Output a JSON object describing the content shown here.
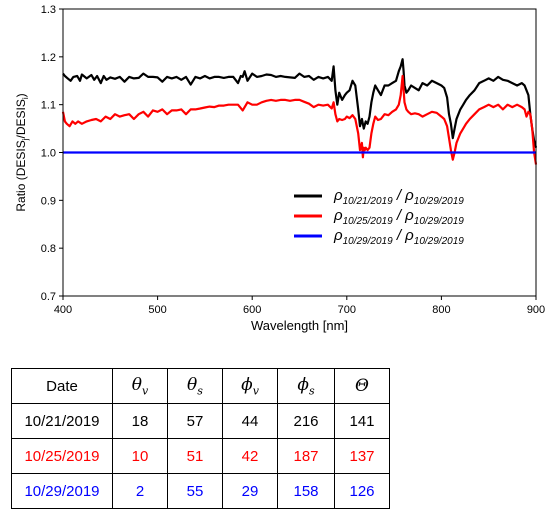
{
  "chart_data": {
    "type": "line",
    "title": "",
    "xlabel": "Wavelength [nm]",
    "ylabel_parts": [
      "Ratio (DESIS",
      "j",
      "/DESIS",
      "i",
      ")"
    ],
    "xlim": [
      400,
      900
    ],
    "ylim": [
      0.7,
      1.3
    ],
    "xticks": [
      400,
      500,
      600,
      700,
      800,
      900
    ],
    "yticks": [
      0.7,
      0.8,
      0.9,
      1.0,
      1.1,
      1.2,
      1.3
    ],
    "xtick_labels": [
      "400",
      "500",
      "600",
      "700",
      "800",
      "900"
    ],
    "ytick_labels": [
      "0.7",
      "0.8",
      "0.9",
      "1.0",
      "1.1",
      "1.2",
      "1.3"
    ],
    "grid": false,
    "legend_position": "right",
    "series": [
      {
        "name": "ρ10/21/2019 / ρ10/29/2019",
        "legend": {
          "rho_a": "ρ",
          "sub_a": "10/21/2019",
          "sep": " / ",
          "rho_b": "ρ",
          "sub_b": "10/29/2019"
        },
        "color": "#000000",
        "x": [
          400,
          402,
          405,
          408,
          411,
          415,
          418,
          420,
          425,
          430,
          433,
          436,
          440,
          443,
          446,
          450,
          455,
          460,
          465,
          470,
          475,
          480,
          485,
          490,
          495,
          500,
          505,
          510,
          515,
          520,
          525,
          530,
          535,
          540,
          545,
          550,
          555,
          560,
          565,
          570,
          575,
          580,
          585,
          588,
          590,
          592,
          595,
          600,
          605,
          610,
          615,
          620,
          625,
          630,
          635,
          640,
          645,
          650,
          655,
          660,
          665,
          670,
          675,
          680,
          684,
          686,
          688,
          690,
          692,
          695,
          698,
          700,
          703,
          706,
          709,
          712,
          714,
          716,
          718,
          720,
          722,
          724,
          726,
          728,
          730,
          733,
          736,
          740,
          744,
          748,
          752,
          755,
          757,
          759,
          760,
          761,
          763,
          765,
          768,
          772,
          776,
          780,
          785,
          790,
          795,
          800,
          803,
          806,
          808,
          810,
          812,
          814,
          816,
          818,
          820,
          823,
          826,
          830,
          835,
          840,
          845,
          850,
          855,
          860,
          865,
          870,
          875,
          880,
          885,
          888,
          890,
          892,
          894,
          896,
          898,
          900
        ],
        "y": [
          1.165,
          1.16,
          1.155,
          1.15,
          1.158,
          1.16,
          1.15,
          1.163,
          1.155,
          1.162,
          1.152,
          1.16,
          1.145,
          1.16,
          1.152,
          1.157,
          1.154,
          1.158,
          1.148,
          1.158,
          1.155,
          1.156,
          1.165,
          1.158,
          1.158,
          1.157,
          1.148,
          1.158,
          1.155,
          1.158,
          1.152,
          1.158,
          1.142,
          1.158,
          1.155,
          1.16,
          1.155,
          1.158,
          1.158,
          1.156,
          1.158,
          1.158,
          1.145,
          1.16,
          1.158,
          1.17,
          1.15,
          1.165,
          1.158,
          1.16,
          1.163,
          1.162,
          1.158,
          1.16,
          1.158,
          1.157,
          1.156,
          1.165,
          1.158,
          1.16,
          1.152,
          1.158,
          1.155,
          1.158,
          1.15,
          1.18,
          1.13,
          1.1,
          1.125,
          1.11,
          1.12,
          1.125,
          1.13,
          1.15,
          1.14,
          1.09,
          1.055,
          1.07,
          1.05,
          1.065,
          1.06,
          1.075,
          1.105,
          1.125,
          1.14,
          1.13,
          1.12,
          1.14,
          1.14,
          1.145,
          1.15,
          1.17,
          1.18,
          1.195,
          1.17,
          1.14,
          1.125,
          1.13,
          1.14,
          1.135,
          1.13,
          1.145,
          1.14,
          1.15,
          1.145,
          1.14,
          1.135,
          1.115,
          1.08,
          1.06,
          1.03,
          1.05,
          1.07,
          1.08,
          1.09,
          1.1,
          1.11,
          1.12,
          1.13,
          1.145,
          1.15,
          1.155,
          1.15,
          1.158,
          1.152,
          1.15,
          1.145,
          1.14,
          1.145,
          1.14,
          1.13,
          1.12,
          1.08,
          1.05,
          1.025,
          1.01
        ]
      },
      {
        "name": "ρ10/25/2019 / ρ10/29/2019",
        "legend": {
          "rho_a": "ρ",
          "sub_a": "10/25/2019",
          "sep": " / ",
          "rho_b": "ρ",
          "sub_b": "10/29/2019"
        },
        "color": "#ff0000",
        "x": [
          400,
          402,
          404,
          407,
          410,
          413,
          416,
          420,
          425,
          430,
          435,
          440,
          445,
          450,
          455,
          460,
          465,
          470,
          475,
          480,
          485,
          490,
          495,
          500,
          505,
          510,
          515,
          520,
          525,
          530,
          535,
          540,
          545,
          550,
          555,
          560,
          565,
          570,
          575,
          580,
          585,
          590,
          595,
          600,
          605,
          610,
          615,
          620,
          625,
          630,
          635,
          640,
          645,
          650,
          655,
          660,
          665,
          670,
          675,
          680,
          684,
          686,
          688,
          690,
          692,
          695,
          698,
          700,
          703,
          706,
          709,
          712,
          714,
          716,
          717,
          718,
          719,
          720,
          722,
          724,
          726,
          728,
          730,
          733,
          736,
          740,
          744,
          748,
          752,
          755,
          757,
          759,
          760,
          761,
          763,
          765,
          768,
          772,
          776,
          780,
          785,
          790,
          795,
          800,
          803,
          806,
          808,
          810,
          812,
          814,
          816,
          818,
          820,
          823,
          826,
          830,
          835,
          840,
          845,
          850,
          855,
          860,
          865,
          870,
          875,
          880,
          885,
          888,
          890,
          892,
          894,
          896,
          898,
          900
        ],
        "y": [
          1.085,
          1.065,
          1.06,
          1.055,
          1.065,
          1.06,
          1.065,
          1.06,
          1.065,
          1.068,
          1.07,
          1.065,
          1.075,
          1.07,
          1.08,
          1.075,
          1.078,
          1.08,
          1.07,
          1.08,
          1.085,
          1.075,
          1.088,
          1.085,
          1.09,
          1.08,
          1.088,
          1.088,
          1.09,
          1.08,
          1.09,
          1.09,
          1.092,
          1.094,
          1.096,
          1.095,
          1.098,
          1.098,
          1.1,
          1.1,
          1.1,
          1.088,
          1.105,
          1.1,
          1.1,
          1.105,
          1.108,
          1.11,
          1.108,
          1.11,
          1.11,
          1.108,
          1.11,
          1.11,
          1.106,
          1.102,
          1.095,
          1.1,
          1.098,
          1.1,
          1.092,
          1.105,
          1.08,
          1.065,
          1.07,
          1.068,
          1.07,
          1.075,
          1.072,
          1.078,
          1.07,
          1.04,
          1.005,
          1.02,
          0.99,
          1.01,
          1.005,
          1.01,
          1.005,
          1.01,
          1.04,
          1.06,
          1.075,
          1.068,
          1.07,
          1.08,
          1.078,
          1.085,
          1.09,
          1.1,
          1.12,
          1.16,
          1.13,
          1.105,
          1.09,
          1.085,
          1.08,
          1.082,
          1.08,
          1.075,
          1.08,
          1.085,
          1.083,
          1.075,
          1.07,
          1.055,
          1.03,
          1.005,
          0.985,
          1.0,
          1.02,
          1.03,
          1.04,
          1.05,
          1.06,
          1.07,
          1.08,
          1.09,
          1.095,
          1.1,
          1.095,
          1.1,
          1.09,
          1.1,
          1.095,
          1.1,
          1.095,
          1.09,
          1.075,
          1.085,
          1.08,
          1.05,
          1.0,
          0.975
        ]
      },
      {
        "name": "ρ10/29/2019 / ρ10/29/2019",
        "legend": {
          "rho_a": "ρ",
          "sub_a": "10/29/2019",
          "sep": " / ",
          "rho_b": "ρ",
          "sub_b": "10/29/2019"
        },
        "color": "#0000ff",
        "x": [
          400,
          900
        ],
        "y": [
          1.0,
          1.0
        ]
      }
    ]
  },
  "table": {
    "headers": [
      {
        "text": "Date",
        "math": false
      },
      {
        "base": "θ",
        "sub": "v",
        "math": true
      },
      {
        "base": "θ",
        "sub": "s",
        "math": true
      },
      {
        "base": "ϕ",
        "sub": "v",
        "math": true
      },
      {
        "base": "ϕ",
        "sub": "s",
        "math": true
      },
      {
        "base": "Θ",
        "sub": "",
        "math": true
      }
    ],
    "rows": [
      {
        "color": "#000000",
        "cells": [
          "10/21/2019",
          "18",
          "57",
          "44",
          "216",
          "141"
        ]
      },
      {
        "color": "#ff0000",
        "cells": [
          "10/25/2019",
          "10",
          "51",
          "42",
          "187",
          "137"
        ]
      },
      {
        "color": "#0000ff",
        "cells": [
          "10/29/2019",
          "2",
          "55",
          "29",
          "158",
          "126"
        ]
      }
    ]
  }
}
